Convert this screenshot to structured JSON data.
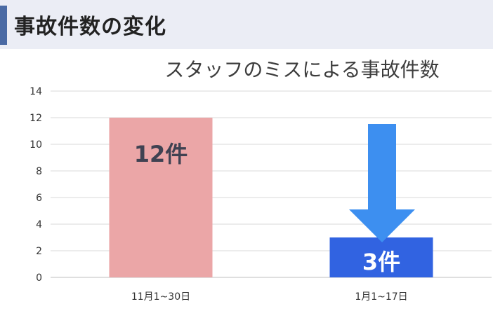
{
  "header": {
    "title": "事故件数の変化"
  },
  "chart_data": {
    "type": "bar",
    "title": "スタッフのミスによる事故件数",
    "categories": [
      "11月1~30日",
      "1月1~17日"
    ],
    "values": [
      12,
      3
    ],
    "data_labels": [
      "12件",
      "3件"
    ],
    "ylim": [
      0,
      14
    ],
    "y_ticks": [
      "0",
      "2",
      "4",
      "6",
      "8",
      "10",
      "12",
      "14"
    ],
    "grid": true,
    "bar_colors": [
      "#eba6a7",
      "#3163e1"
    ],
    "arrow_color": "#3d8ff0",
    "legend": "none"
  }
}
